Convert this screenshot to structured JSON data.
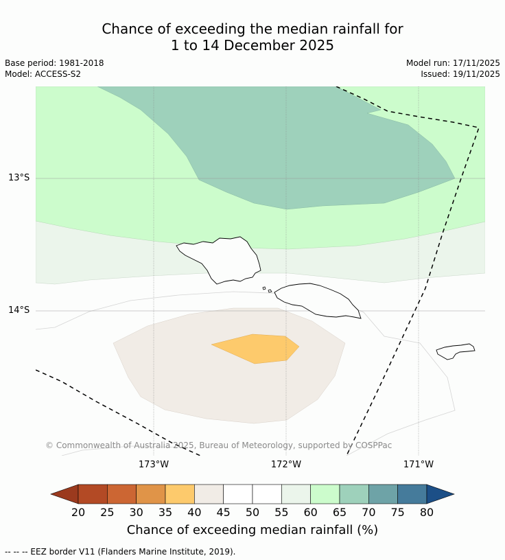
{
  "title": {
    "line1": "Chance of exceeding the median rainfall for",
    "line2": "1 to 14 December 2025"
  },
  "meta": {
    "base_period": "Base period: 1981-2018",
    "model": "Model: ACCESS-S2",
    "model_run": "Model run: 17/11/2025",
    "issued": "Issued: 19/11/2025"
  },
  "map": {
    "lat_labels": [
      "13°S",
      "14°S"
    ],
    "lon_labels": [
      "173°W",
      "172°W",
      "171°W"
    ],
    "copyright": "© Commonwealth of Australia 2025, Bureau of Meteorology, supported by COSPPac"
  },
  "colorbar": {
    "ticks": [
      "20",
      "25",
      "30",
      "35",
      "40",
      "45",
      "50",
      "55",
      "60",
      "65",
      "70",
      "75",
      "80"
    ],
    "colors": [
      "#b34a25",
      "#cc6633",
      "#e09448",
      "#fdca6c",
      "#f1ece6",
      "#ffffff",
      "#ffffff",
      "#ebf5eb",
      "#ccfccc",
      "#9ed1bb",
      "#6ea3a7",
      "#457b9b"
    ],
    "under_color": "#9b3a1e",
    "over_color": "#1c4f87",
    "title": "Chance of exceeding median rainfall (%)"
  },
  "footnote": "--  --  -- EEZ border V11 (Flanders Marine Institute, 2019)."
}
